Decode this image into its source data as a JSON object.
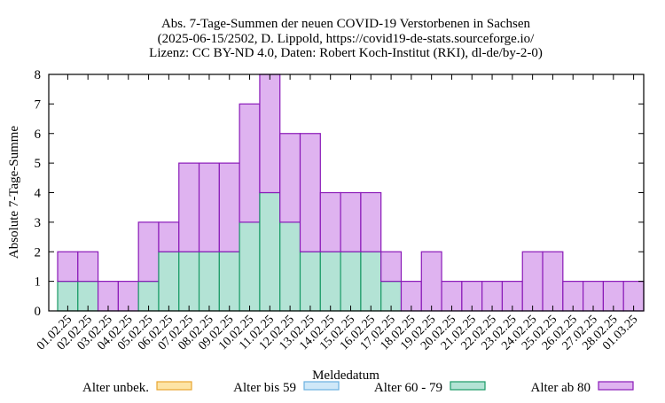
{
  "chart_data": {
    "type": "bar",
    "stacked": true,
    "title_lines": [
      "Abs. 7-Tage-Summen der neuen COVID-19 Verstorbenen in Sachsen",
      "(2025-06-15/2502, D. Lippold, https://covid19-de-stats.sourceforge.io/",
      "Lizenz: CC BY-ND 4.0, Daten: Robert Koch-Institut (RKI), dl-de/by-2-0)"
    ],
    "xlabel": "Meldedatum",
    "ylabel": "Absolute 7-Tage-Summe",
    "ylim": [
      0,
      8
    ],
    "yticks": [
      "0",
      "1",
      "2",
      "3",
      "4",
      "5",
      "6",
      "7",
      "8"
    ],
    "grid": false,
    "legend_position": "bottom",
    "categories": [
      "01.02.25",
      "02.02.25",
      "03.02.25",
      "04.02.25",
      "05.02.25",
      "06.02.25",
      "07.02.25",
      "08.02.25",
      "09.02.25",
      "10.02.25",
      "11.02.25",
      "12.02.25",
      "13.02.25",
      "14.02.25",
      "15.02.25",
      "16.02.25",
      "17.02.25",
      "18.02.25",
      "19.02.25",
      "20.02.25",
      "21.02.25",
      "22.02.25",
      "23.02.25",
      "24.02.25",
      "25.02.25",
      "26.02.25",
      "27.02.25",
      "28.02.25",
      "01.03.25"
    ],
    "series": [
      {
        "name": "Alter unbek.",
        "color": "#fde4a5",
        "stroke": "#e8a530",
        "values": [
          0,
          0,
          0,
          0,
          0,
          0,
          0,
          0,
          0,
          0,
          0,
          0,
          0,
          0,
          0,
          0,
          0,
          0,
          0,
          0,
          0,
          0,
          0,
          0,
          0,
          0,
          0,
          0,
          0
        ]
      },
      {
        "name": "Alter bis 59",
        "color": "#cfe8f8",
        "stroke": "#6ab0e0",
        "values": [
          0,
          0,
          0,
          0,
          0,
          0,
          0,
          0,
          0,
          0,
          0,
          0,
          0,
          0,
          0,
          0,
          0,
          0,
          0,
          0,
          0,
          0,
          0,
          0,
          0,
          0,
          0,
          0,
          0
        ]
      },
      {
        "name": "Alter 60 - 79",
        "color": "#b3e3d5",
        "stroke": "#1a9a66",
        "values": [
          1,
          1,
          0,
          0,
          1,
          2,
          2,
          2,
          2,
          3,
          4,
          3,
          2,
          2,
          2,
          2,
          1,
          0,
          0,
          0,
          0,
          0,
          0,
          0,
          0,
          0,
          0,
          0,
          0
        ]
      },
      {
        "name": "Alter ab 80",
        "color": "#dfb3f0",
        "stroke": "#8a1ab8",
        "values": [
          1,
          1,
          1,
          1,
          2,
          1,
          3,
          3,
          3,
          4,
          4,
          3,
          4,
          2,
          2,
          2,
          1,
          1,
          2,
          1,
          1,
          1,
          1,
          2,
          2,
          1,
          1,
          1,
          1
        ]
      }
    ]
  }
}
